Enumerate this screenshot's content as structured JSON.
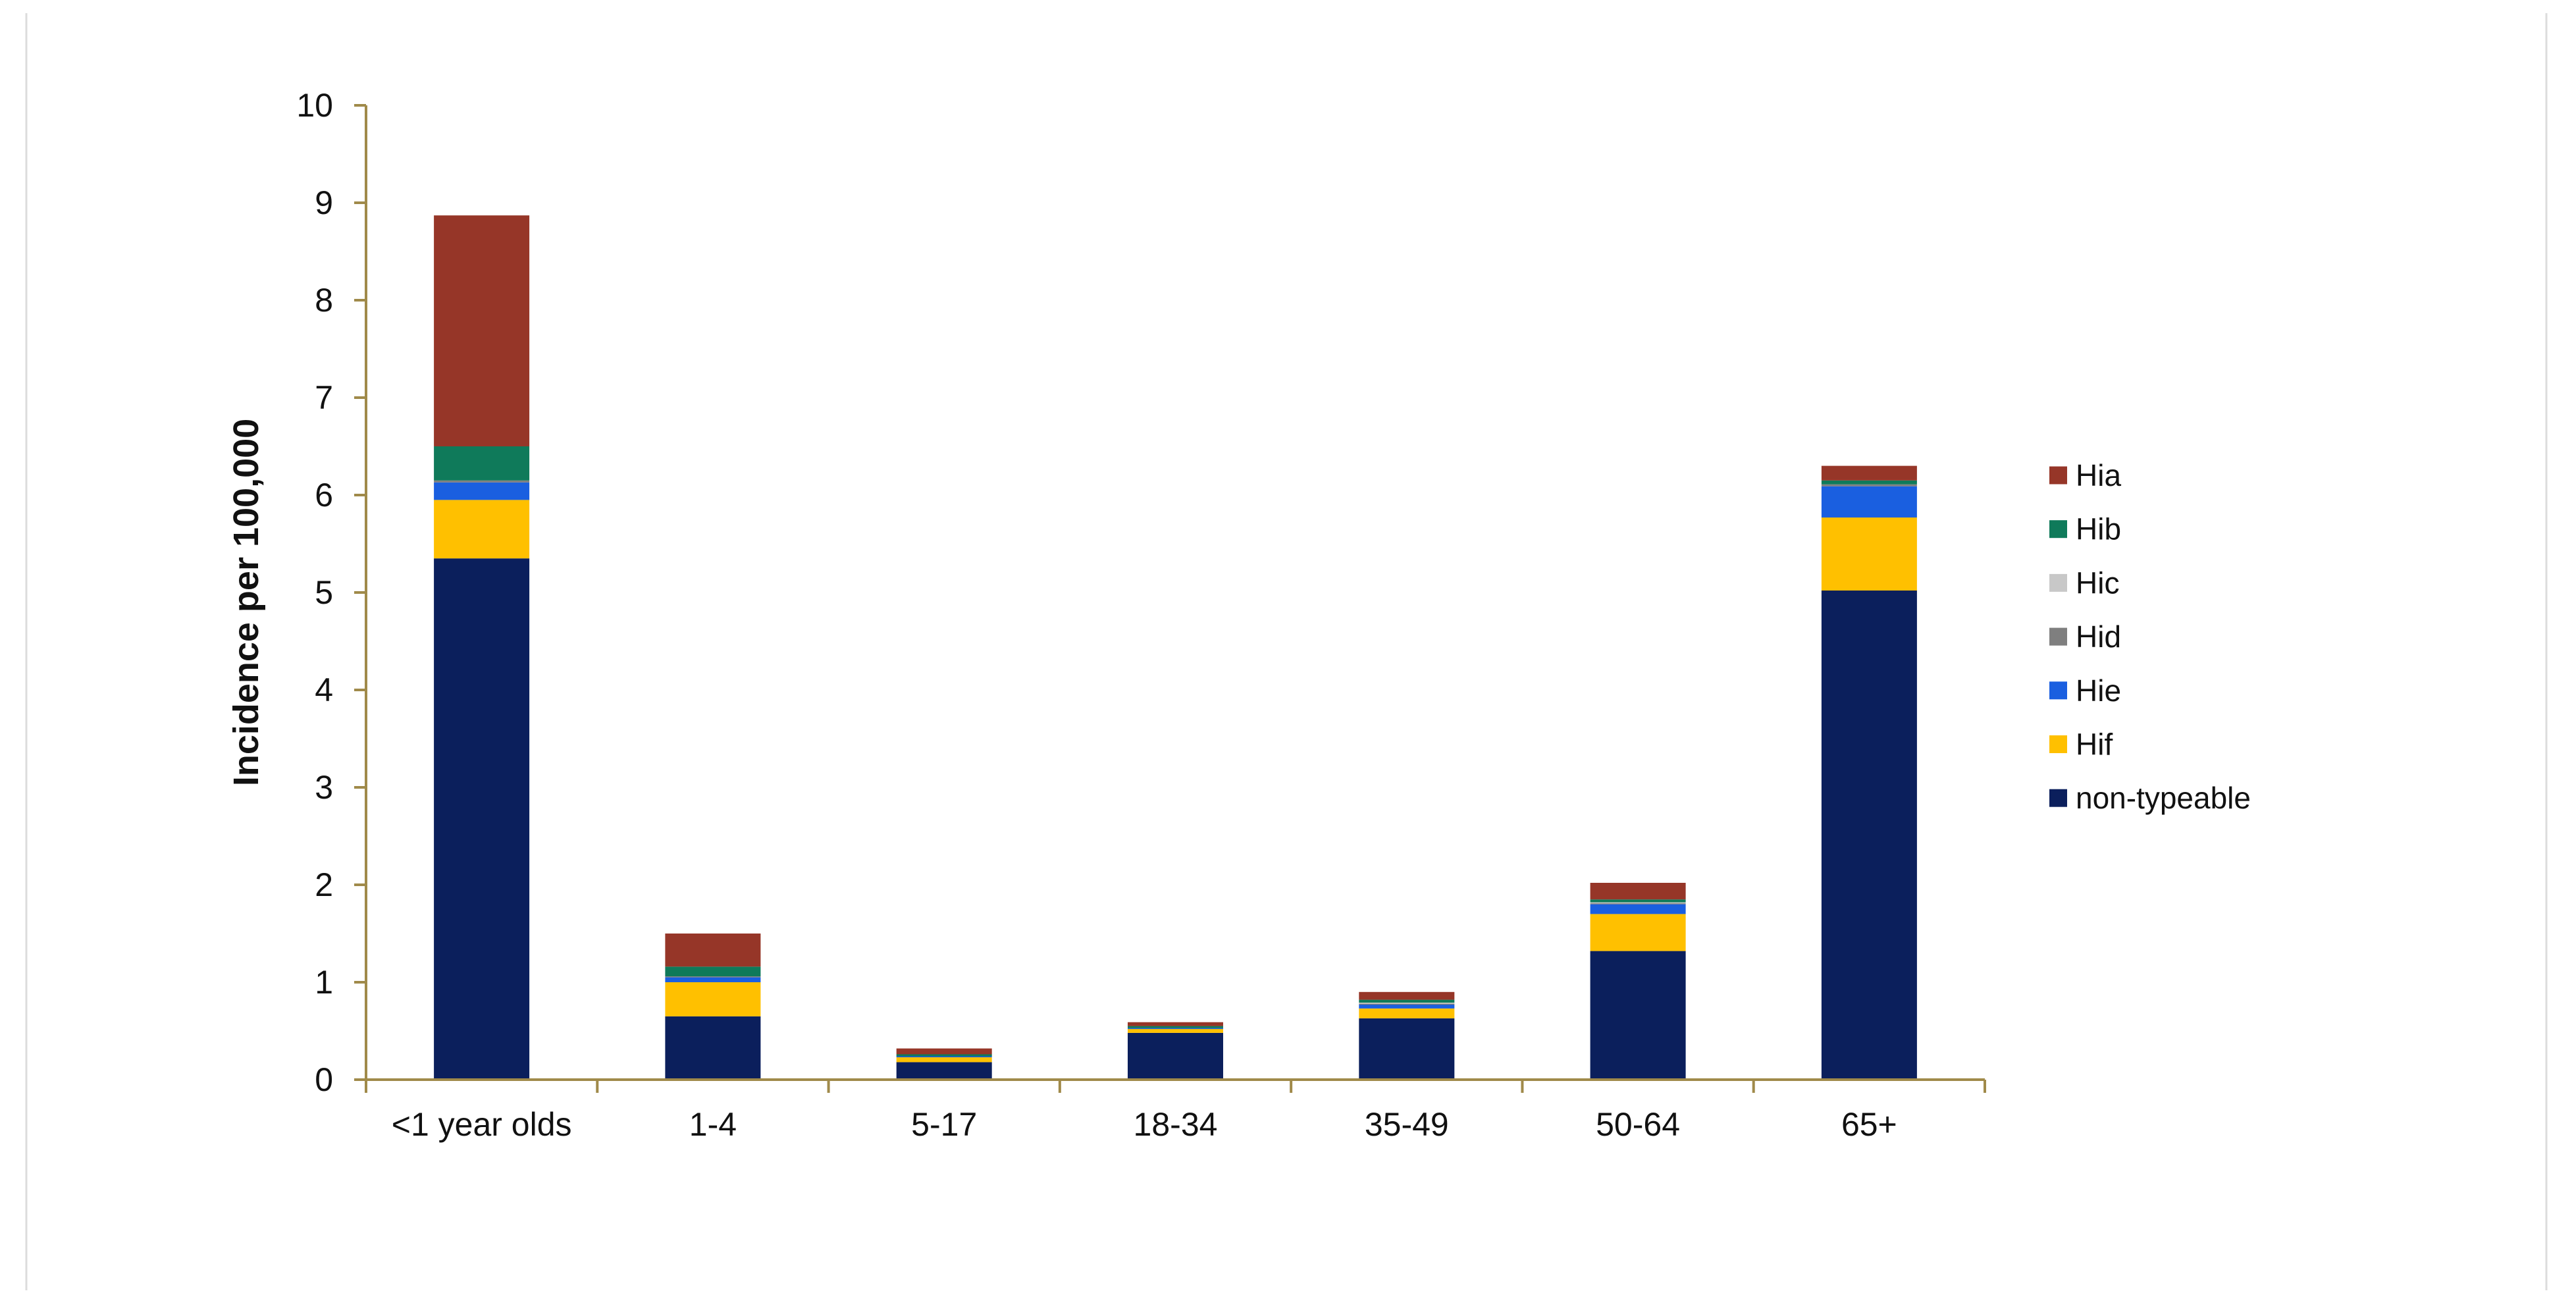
{
  "chart_data": {
    "type": "bar",
    "stacked": true,
    "title": "",
    "xlabel": "",
    "ylabel": "Incidence per 100,000",
    "ylim": [
      0,
      10
    ],
    "yticks": [
      "0",
      "1",
      "2",
      "3",
      "4",
      "5",
      "6",
      "7",
      "8",
      "9",
      "10"
    ],
    "categories": [
      "<1 year olds",
      "1-4",
      "5-17",
      "18-34",
      "35-49",
      "50-64",
      "65+"
    ],
    "legend_position": "right",
    "series": [
      {
        "name": "non-typeable",
        "color": "#0b1f5c",
        "values": [
          5.35,
          0.65,
          0.18,
          0.48,
          0.63,
          1.32,
          5.02
        ]
      },
      {
        "name": "Hif",
        "color": "#ffc000",
        "values": [
          0.6,
          0.35,
          0.05,
          0.04,
          0.1,
          0.38,
          0.75
        ]
      },
      {
        "name": "Hie",
        "color": "#1a5fe0",
        "values": [
          0.18,
          0.05,
          0.01,
          0.01,
          0.04,
          0.1,
          0.32
        ]
      },
      {
        "name": "Hid",
        "color": "#7f7f7f",
        "values": [
          0.02,
          0.01,
          0.0,
          0.0,
          0.01,
          0.01,
          0.02
        ]
      },
      {
        "name": "Hic",
        "color": "#c8c8c8",
        "values": [
          0.0,
          0.0,
          0.0,
          0.0,
          0.01,
          0.01,
          0.0
        ]
      },
      {
        "name": "Hib",
        "color": "#0f7a5a",
        "values": [
          0.35,
          0.1,
          0.02,
          0.02,
          0.03,
          0.03,
          0.04
        ]
      },
      {
        "name": "Hia",
        "color": "#963628",
        "values": [
          2.37,
          0.34,
          0.06,
          0.04,
          0.08,
          0.17,
          0.15
        ]
      }
    ],
    "legend_order": [
      "Hia",
      "Hib",
      "Hic",
      "Hid",
      "Hie",
      "Hif",
      "non-typeable"
    ],
    "axis_color": "#a08a4a"
  }
}
